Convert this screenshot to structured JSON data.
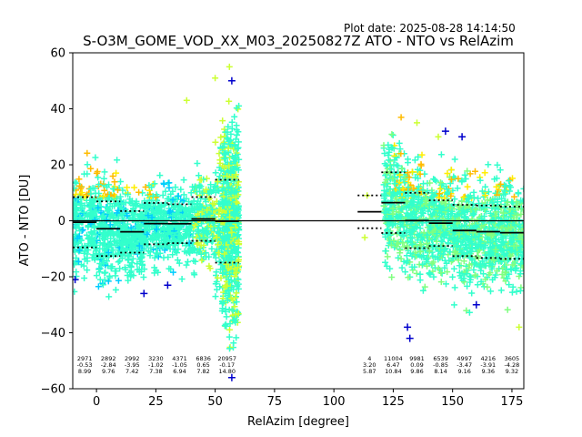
{
  "plot_date": "Plot date: 2025-08-28 14:14:50",
  "chart_data": {
    "type": "scatter",
    "title": "S-O3M_GOME_VOD_XX_M03_20250827Z ATO - NTO vs RelAzim",
    "xlabel": "RelAzim [degree]",
    "ylabel": "ATO - NTO [DU]",
    "xlim": [
      -10,
      180
    ],
    "ylim": [
      -60,
      60
    ],
    "xticks": [
      0,
      25,
      50,
      75,
      100,
      125,
      150,
      175
    ],
    "yticks": [
      -60,
      -40,
      -20,
      0,
      20,
      40,
      60
    ],
    "grid": false,
    "reference_line_y": 0,
    "marker": "+",
    "colors": {
      "dense": "#33ffcc",
      "cyan": "#00ccff",
      "green": "#80ff80",
      "yellow_green": "#ccff33",
      "yellow": "#ffee00",
      "orange": "#ffbb00",
      "blue": "#0000cc",
      "mean_line": "#000000"
    },
    "bins": [
      {
        "x0": -10,
        "x1": 0,
        "count": "2971",
        "mean": "-0.53",
        "std": "8.99"
      },
      {
        "x0": 0,
        "x1": 10,
        "count": "2892",
        "mean": "-2.84",
        "std": "9.76"
      },
      {
        "x0": 10,
        "x1": 20,
        "count": "2992",
        "mean": "-3.95",
        "std": "7.42"
      },
      {
        "x0": 20,
        "x1": 30,
        "count": "3230",
        "mean": "-1.02",
        "std": "7.38"
      },
      {
        "x0": 30,
        "x1": 40,
        "count": "4371",
        "mean": "-1.05",
        "std": "6.94"
      },
      {
        "x0": 40,
        "x1": 50,
        "count": "6836",
        "mean": "0.65",
        "std": "7.82"
      },
      {
        "x0": 50,
        "x1": 60,
        "count": "20957",
        "mean": "-0.17",
        "std": "14.80"
      },
      {
        "x0": 110,
        "x1": 120,
        "count": "4",
        "mean": "3.20",
        "std": "5.87"
      },
      {
        "x0": 120,
        "x1": 130,
        "count": "11004",
        "mean": "6.47",
        "std": "10.84"
      },
      {
        "x0": 130,
        "x1": 140,
        "count": "9981",
        "mean": "0.09",
        "std": "9.86"
      },
      {
        "x0": 140,
        "x1": 150,
        "count": "6539",
        "mean": "-0.85",
        "std": "8.14"
      },
      {
        "x0": 150,
        "x1": 160,
        "count": "4997",
        "mean": "-3.47",
        "std": "9.16"
      },
      {
        "x0": 160,
        "x1": 170,
        "count": "4216",
        "mean": "-3.91",
        "std": "9.36"
      },
      {
        "x0": 170,
        "x1": 180,
        "count": "3605",
        "mean": "-4.28",
        "std": "9.32"
      }
    ]
  }
}
